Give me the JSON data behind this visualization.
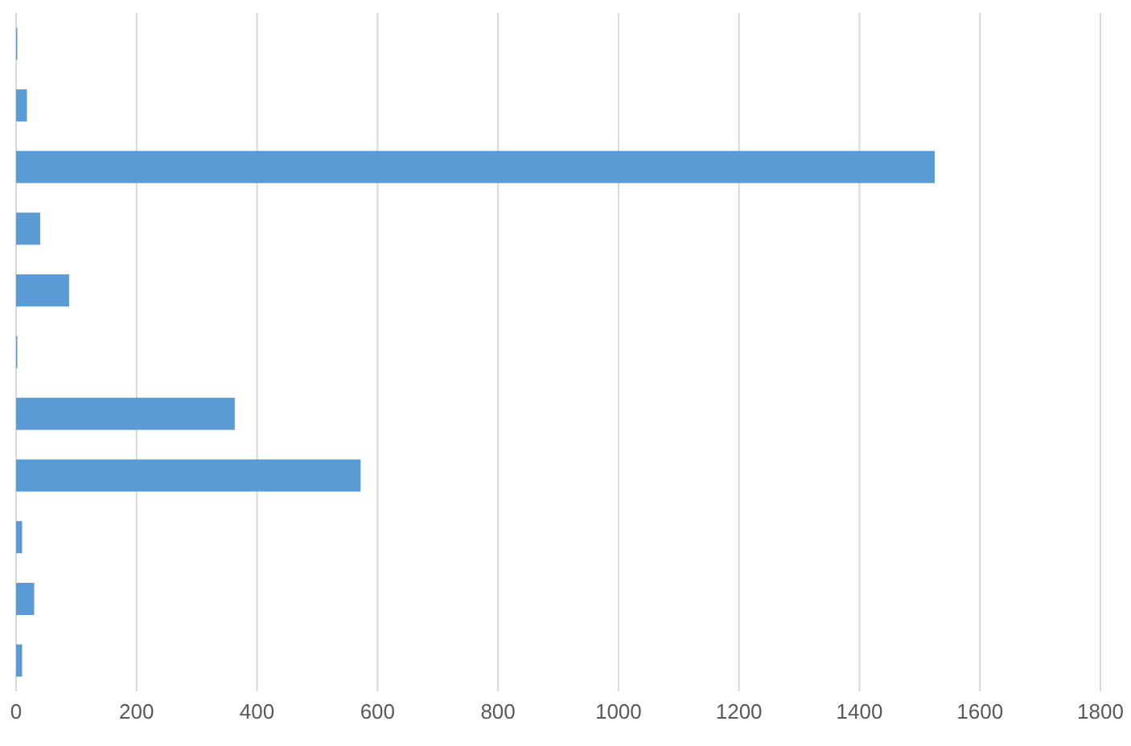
{
  "chart_data": {
    "type": "bar",
    "orientation": "horizontal",
    "categories": [
      null,
      null,
      null,
      null,
      null,
      null,
      null,
      null,
      null,
      null,
      null
    ],
    "values": [
      2,
      18,
      1525,
      40,
      88,
      2,
      363,
      572,
      10,
      30,
      10
    ],
    "color": "#5b9bd5",
    "xlim": [
      0,
      1800
    ],
    "xticks": [
      0,
      200,
      400,
      600,
      800,
      1000,
      1200,
      1400,
      1600,
      1800
    ],
    "grid": "x"
  }
}
